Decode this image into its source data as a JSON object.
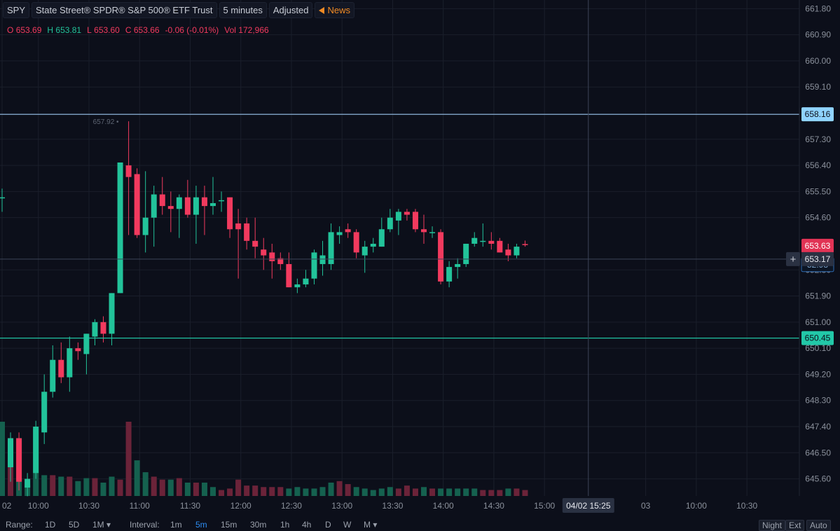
{
  "header": {
    "symbol": "SPY",
    "name": "State Street® SPDR® S&P 500® ETF Trust",
    "interval": "5 minutes",
    "adjusted": "Adjusted",
    "news": "News"
  },
  "ohlc": {
    "o_label": "O",
    "o": "653.69",
    "h_label": "H",
    "h": "653.81",
    "l_label": "L",
    "l": "653.60",
    "c_label": "C",
    "c": "653.66",
    "change": "-0.06 (-0.01%)",
    "vol_label": "Vol",
    "vol": "172,966"
  },
  "bottom_bar": {
    "range_label": "Range:",
    "r1": "1D",
    "r2": "5D",
    "r3": "1M ▾",
    "interval_label": "Interval:",
    "i1": "1m",
    "i2": "5m",
    "i3": "15m",
    "i4": "30m",
    "i5": "1h",
    "i6": "4h",
    "i7": "D",
    "i8": "W",
    "i9": "M ▾",
    "night": "Night",
    "ext": "Ext",
    "auto": "Auto"
  },
  "colors": {
    "up": "#22c39a",
    "down": "#f23a5e",
    "bg": "#0c0f1a",
    "grid": "#1a1f2b",
    "price_line": "#9bc6f0"
  },
  "chart_data": {
    "type": "candlestick",
    "y_ticks": [
      661.8,
      660.9,
      660.0,
      659.1,
      657.3,
      656.4,
      655.5,
      654.6,
      652.8,
      651.9,
      651.0,
      650.1,
      649.2,
      648.3,
      647.4,
      646.5,
      645.6
    ],
    "ylim": [
      645.3,
      662.05
    ],
    "x_tick_labels": [
      {
        "i": 0,
        "label": "02"
      },
      {
        "i": 4.3,
        "label": "10:00"
      },
      {
        "i": 10.3,
        "label": "10:30"
      },
      {
        "i": 16.3,
        "label": "11:00"
      },
      {
        "i": 22.3,
        "label": "11:30"
      },
      {
        "i": 28.3,
        "label": "12:00"
      },
      {
        "i": 34.3,
        "label": "12:30"
      },
      {
        "i": 40.3,
        "label": "13:00"
      },
      {
        "i": 46.3,
        "label": "13:30"
      },
      {
        "i": 52.3,
        "label": "14:00"
      },
      {
        "i": 58.3,
        "label": "14:30"
      },
      {
        "i": 64.3,
        "label": "15:00"
      },
      {
        "i": 76.3,
        "label": "03"
      },
      {
        "i": 82.3,
        "label": "10:00"
      },
      {
        "i": 88.3,
        "label": "10:30"
      }
    ],
    "crosshair_label": "04/02 15:25",
    "crosshair_i": 70,
    "candles": [
      {
        "o": 655.3,
        "h": 655.6,
        "l": 654.8,
        "c": 655.3
      },
      {
        "o": 646.0,
        "h": 647.2,
        "l": 645.5,
        "c": 647.0
      },
      {
        "o": 647.0,
        "h": 647.2,
        "l": 645.2,
        "c": 645.5
      },
      {
        "o": 645.3,
        "h": 645.8,
        "l": 645.0,
        "c": 645.6
      },
      {
        "o": 645.8,
        "h": 647.6,
        "l": 645.6,
        "c": 647.4
      },
      {
        "o": 647.2,
        "h": 649.2,
        "l": 646.8,
        "c": 648.6
      },
      {
        "o": 648.6,
        "h": 650.2,
        "l": 648.4,
        "c": 649.7
      },
      {
        "o": 649.7,
        "h": 650.3,
        "l": 648.9,
        "c": 649.1
      },
      {
        "o": 649.1,
        "h": 650.5,
        "l": 648.6,
        "c": 650.1
      },
      {
        "o": 650.1,
        "h": 650.3,
        "l": 649.7,
        "c": 650.0
      },
      {
        "o": 649.9,
        "h": 650.6,
        "l": 649.2,
        "c": 650.6
      },
      {
        "o": 650.5,
        "h": 651.1,
        "l": 650.2,
        "c": 651.0
      },
      {
        "o": 651.0,
        "h": 651.2,
        "l": 650.3,
        "c": 650.6
      },
      {
        "o": 650.6,
        "h": 652.0,
        "l": 650.2,
        "c": 652.0
      },
      {
        "o": 652.0,
        "h": 656.5,
        "l": 652.0,
        "c": 656.5
      },
      {
        "o": 656.4,
        "h": 657.92,
        "l": 654.0,
        "c": 656.0
      },
      {
        "o": 656.1,
        "h": 656.3,
        "l": 653.9,
        "c": 654.0
      },
      {
        "o": 654.0,
        "h": 656.2,
        "l": 653.4,
        "c": 654.6
      },
      {
        "o": 654.6,
        "h": 655.7,
        "l": 653.6,
        "c": 655.4
      },
      {
        "o": 655.4,
        "h": 656.0,
        "l": 654.7,
        "c": 655.0
      },
      {
        "o": 655.0,
        "h": 655.5,
        "l": 654.1,
        "c": 654.9
      },
      {
        "o": 654.9,
        "h": 655.4,
        "l": 653.9,
        "c": 655.3
      },
      {
        "o": 655.3,
        "h": 655.9,
        "l": 654.6,
        "c": 654.7
      },
      {
        "o": 654.7,
        "h": 655.7,
        "l": 653.7,
        "c": 655.3
      },
      {
        "o": 655.3,
        "h": 655.7,
        "l": 654.0,
        "c": 655.0
      },
      {
        "o": 655.0,
        "h": 656.0,
        "l": 654.7,
        "c": 655.1
      },
      {
        "o": 655.2,
        "h": 655.5,
        "l": 654.8,
        "c": 655.2
      },
      {
        "o": 655.3,
        "h": 655.3,
        "l": 653.9,
        "c": 654.2
      },
      {
        "o": 654.4,
        "h": 654.9,
        "l": 652.5,
        "c": 654.2
      },
      {
        "o": 654.4,
        "h": 654.6,
        "l": 653.5,
        "c": 653.8
      },
      {
        "o": 653.8,
        "h": 654.6,
        "l": 653.2,
        "c": 653.6
      },
      {
        "o": 653.5,
        "h": 653.9,
        "l": 652.8,
        "c": 653.3
      },
      {
        "o": 653.4,
        "h": 653.7,
        "l": 652.5,
        "c": 653.1
      },
      {
        "o": 653.2,
        "h": 653.4,
        "l": 652.8,
        "c": 653.0
      },
      {
        "o": 653.0,
        "h": 653.4,
        "l": 652.2,
        "c": 652.2
      },
      {
        "o": 652.2,
        "h": 652.5,
        "l": 652.0,
        "c": 652.3
      },
      {
        "o": 652.3,
        "h": 652.8,
        "l": 652.2,
        "c": 652.5
      },
      {
        "o": 652.5,
        "h": 653.5,
        "l": 652.3,
        "c": 653.4
      },
      {
        "o": 653.0,
        "h": 653.8,
        "l": 652.6,
        "c": 653.3
      },
      {
        "o": 653.0,
        "h": 654.4,
        "l": 652.8,
        "c": 654.1
      },
      {
        "o": 654.0,
        "h": 654.3,
        "l": 653.7,
        "c": 654.1
      },
      {
        "o": 654.2,
        "h": 654.4,
        "l": 653.9,
        "c": 654.1
      },
      {
        "o": 654.1,
        "h": 654.2,
        "l": 653.2,
        "c": 653.4
      },
      {
        "o": 653.3,
        "h": 653.8,
        "l": 652.7,
        "c": 653.6
      },
      {
        "o": 653.6,
        "h": 653.9,
        "l": 653.4,
        "c": 653.7
      },
      {
        "o": 653.6,
        "h": 654.6,
        "l": 653.6,
        "c": 654.2
      },
      {
        "o": 654.2,
        "h": 654.9,
        "l": 654.1,
        "c": 654.6
      },
      {
        "o": 654.5,
        "h": 654.9,
        "l": 654.0,
        "c": 654.8
      },
      {
        "o": 654.8,
        "h": 654.9,
        "l": 654.5,
        "c": 654.7
      },
      {
        "o": 654.8,
        "h": 654.9,
        "l": 654.1,
        "c": 654.2
      },
      {
        "o": 654.2,
        "h": 654.7,
        "l": 653.7,
        "c": 654.1
      },
      {
        "o": 654.1,
        "h": 654.3,
        "l": 653.9,
        "c": 654.1
      },
      {
        "o": 654.1,
        "h": 654.2,
        "l": 652.3,
        "c": 652.4
      },
      {
        "o": 652.4,
        "h": 653.1,
        "l": 652.2,
        "c": 652.9
      },
      {
        "o": 652.9,
        "h": 653.2,
        "l": 652.5,
        "c": 653.0
      },
      {
        "o": 653.0,
        "h": 653.7,
        "l": 652.9,
        "c": 653.7
      },
      {
        "o": 653.7,
        "h": 654.1,
        "l": 653.6,
        "c": 653.9
      },
      {
        "o": 653.8,
        "h": 654.4,
        "l": 653.6,
        "c": 653.8
      },
      {
        "o": 653.8,
        "h": 654.1,
        "l": 653.5,
        "c": 653.7
      },
      {
        "o": 653.8,
        "h": 653.9,
        "l": 653.4,
        "c": 653.4
      },
      {
        "o": 653.5,
        "h": 653.7,
        "l": 653.1,
        "c": 653.3
      },
      {
        "o": 653.3,
        "h": 653.7,
        "l": 653.2,
        "c": 653.6
      },
      {
        "o": 653.69,
        "h": 653.81,
        "l": 653.6,
        "c": 653.66
      }
    ],
    "volumes": [
      1.0,
      0.78,
      0.78,
      0.15,
      0.9,
      0.28,
      0.28,
      0.26,
      0.26,
      0.2,
      0.24,
      0.24,
      0.18,
      0.26,
      0.22,
      1.0,
      0.48,
      0.32,
      0.26,
      0.22,
      0.22,
      0.24,
      0.18,
      0.18,
      0.18,
      0.12,
      0.08,
      0.1,
      0.22,
      0.14,
      0.14,
      0.12,
      0.12,
      0.12,
      0.1,
      0.12,
      0.1,
      0.1,
      0.12,
      0.18,
      0.2,
      0.16,
      0.12,
      0.1,
      0.08,
      0.1,
      0.12,
      0.1,
      0.14,
      0.1,
      0.12,
      0.1,
      0.1,
      0.1,
      0.1,
      0.1,
      0.1,
      0.08,
      0.08,
      0.08,
      0.1,
      0.1,
      0.08
    ],
    "hlines": [
      {
        "value": 658.16,
        "label": "658.16",
        "color": "#9bc6f0",
        "badge_bg": "#8fd3ff",
        "badge_fg": "#0c0f1a"
      },
      {
        "value": 650.45,
        "label": "650.45",
        "color": "#1fc3a3",
        "badge_bg": "#22c8a8",
        "badge_fg": "#0c0f1a"
      }
    ],
    "crosshair_price": {
      "value": 653.17,
      "label": "653.17"
    },
    "current_price": {
      "value": 653.63,
      "label": "653.63"
    },
    "hidden_price_tail": "52.98",
    "high_marker": {
      "value": 657.92,
      "label": "657.92"
    }
  }
}
